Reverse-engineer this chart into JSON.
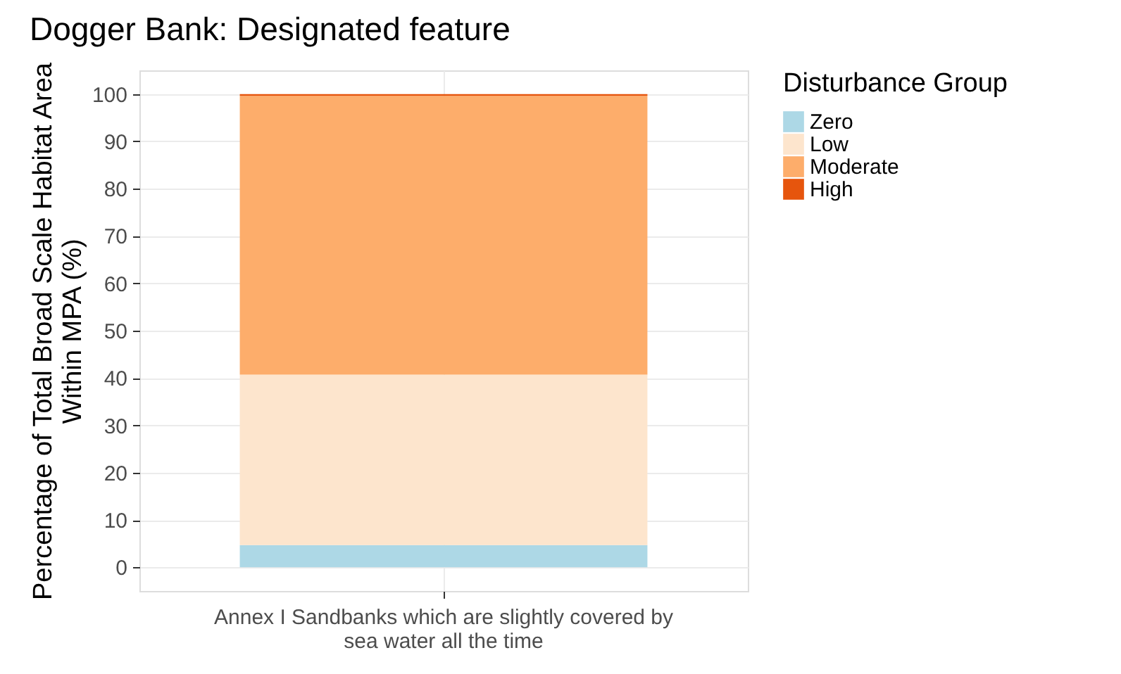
{
  "chart_data": {
    "type": "bar",
    "title": "Dogger Bank: Designated feature",
    "ylabel": "Percentage of Total Broad Scale Habitat Area\nWithin MPA (%)",
    "legend_title": "Disturbance Group",
    "categories": [
      "Annex I Sandbanks which are slightly covered by\nsea water all the time"
    ],
    "stacked": true,
    "series": [
      {
        "name": "Zero",
        "color": "#add8e6",
        "values": [
          4.7
        ]
      },
      {
        "name": "Low",
        "color": "#fde5cd",
        "values": [
          36.0
        ]
      },
      {
        "name": "Moderate",
        "color": "#fdad6b",
        "values": [
          58.9
        ]
      },
      {
        "name": "High",
        "color": "#e6550d",
        "values": [
          0.4
        ]
      }
    ],
    "ylim": [
      -5,
      105
    ],
    "yticks": [
      0,
      10,
      20,
      30,
      40,
      50,
      60,
      70,
      80,
      90,
      100
    ],
    "grid": true,
    "legend": "right"
  }
}
